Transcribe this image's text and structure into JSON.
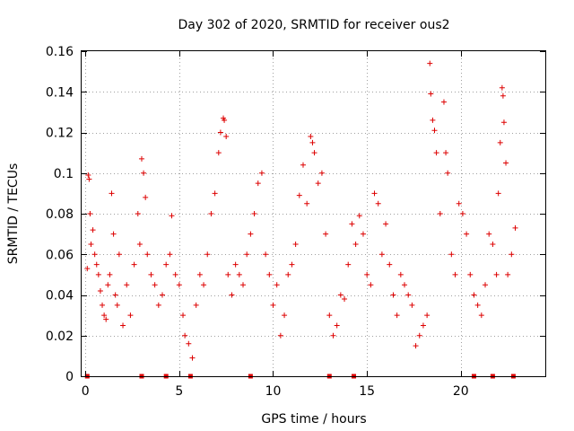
{
  "chart_data": {
    "type": "scatter",
    "title": "Day 302 of 2020, SRMTID for receiver ous2",
    "xlabel": "GPS time / hours",
    "ylabel": "SRMTID / TECUs",
    "xlim": [
      -0.2,
      24.5
    ],
    "ylim": [
      0,
      0.16
    ],
    "x_ticks": [
      0,
      5,
      10,
      15,
      20
    ],
    "x_tick_labels": [
      "0",
      "5",
      "10",
      "15",
      "20"
    ],
    "y_ticks": [
      0,
      0.02,
      0.04,
      0.06,
      0.08,
      0.1,
      0.12,
      0.14,
      0.16
    ],
    "y_tick_labels": [
      "0",
      "0.02",
      "0.04",
      "0.06",
      "0.08",
      "0.1",
      "0.12",
      "0.14",
      "0.16"
    ],
    "grid": true,
    "marker": "+",
    "color": "#dd0000",
    "zero_value_times": [
      0.1,
      3.0,
      4.3,
      5.6,
      8.8,
      13.0,
      14.3,
      20.7,
      21.7,
      22.8
    ],
    "series": [
      {
        "name": "SRMTID",
        "points": [
          [
            0.1,
            0.053
          ],
          [
            0.15,
            0.099
          ],
          [
            0.2,
            0.097
          ],
          [
            0.25,
            0.08
          ],
          [
            0.3,
            0.065
          ],
          [
            0.4,
            0.072
          ],
          [
            0.5,
            0.06
          ],
          [
            0.6,
            0.055
          ],
          [
            0.7,
            0.05
          ],
          [
            0.8,
            0.042
          ],
          [
            0.9,
            0.035
          ],
          [
            1.0,
            0.03
          ],
          [
            1.1,
            0.028
          ],
          [
            1.2,
            0.045
          ],
          [
            1.3,
            0.05
          ],
          [
            1.4,
            0.09
          ],
          [
            1.5,
            0.07
          ],
          [
            1.6,
            0.04
          ],
          [
            1.7,
            0.035
          ],
          [
            1.8,
            0.06
          ],
          [
            2.0,
            0.025
          ],
          [
            2.2,
            0.045
          ],
          [
            2.4,
            0.03
          ],
          [
            2.6,
            0.055
          ],
          [
            2.8,
            0.08
          ],
          [
            2.9,
            0.065
          ],
          [
            3.0,
            0.107
          ],
          [
            3.1,
            0.1
          ],
          [
            3.2,
            0.088
          ],
          [
            3.3,
            0.06
          ],
          [
            3.5,
            0.05
          ],
          [
            3.7,
            0.045
          ],
          [
            3.9,
            0.035
          ],
          [
            4.1,
            0.04
          ],
          [
            4.3,
            0.055
          ],
          [
            4.5,
            0.06
          ],
          [
            4.6,
            0.079
          ],
          [
            4.8,
            0.05
          ],
          [
            5.0,
            0.045
          ],
          [
            5.2,
            0.03
          ],
          [
            5.3,
            0.02
          ],
          [
            5.5,
            0.016
          ],
          [
            5.7,
            0.009
          ],
          [
            5.9,
            0.035
          ],
          [
            6.1,
            0.05
          ],
          [
            6.3,
            0.045
          ],
          [
            6.5,
            0.06
          ],
          [
            6.7,
            0.08
          ],
          [
            6.9,
            0.09
          ],
          [
            7.1,
            0.11
          ],
          [
            7.2,
            0.12
          ],
          [
            7.35,
            0.127
          ],
          [
            7.4,
            0.126
          ],
          [
            7.5,
            0.118
          ],
          [
            7.6,
            0.05
          ],
          [
            7.8,
            0.04
          ],
          [
            8.0,
            0.055
          ],
          [
            8.2,
            0.05
          ],
          [
            8.4,
            0.045
          ],
          [
            8.6,
            0.06
          ],
          [
            8.8,
            0.07
          ],
          [
            9.0,
            0.08
          ],
          [
            9.2,
            0.095
          ],
          [
            9.4,
            0.1
          ],
          [
            9.6,
            0.06
          ],
          [
            9.8,
            0.05
          ],
          [
            10.0,
            0.035
          ],
          [
            10.2,
            0.045
          ],
          [
            10.4,
            0.02
          ],
          [
            10.6,
            0.03
          ],
          [
            10.8,
            0.05
          ],
          [
            11.0,
            0.055
          ],
          [
            11.2,
            0.065
          ],
          [
            11.4,
            0.089
          ],
          [
            11.6,
            0.104
          ],
          [
            11.8,
            0.085
          ],
          [
            12.0,
            0.118
          ],
          [
            12.1,
            0.115
          ],
          [
            12.2,
            0.11
          ],
          [
            12.4,
            0.095
          ],
          [
            12.6,
            0.1
          ],
          [
            12.8,
            0.07
          ],
          [
            13.0,
            0.03
          ],
          [
            13.2,
            0.02
          ],
          [
            13.4,
            0.025
          ],
          [
            13.6,
            0.04
          ],
          [
            13.8,
            0.038
          ],
          [
            14.0,
            0.055
          ],
          [
            14.2,
            0.075
          ],
          [
            14.4,
            0.065
          ],
          [
            14.6,
            0.079
          ],
          [
            14.8,
            0.07
          ],
          [
            15.0,
            0.05
          ],
          [
            15.2,
            0.045
          ],
          [
            15.4,
            0.09
          ],
          [
            15.6,
            0.085
          ],
          [
            15.8,
            0.06
          ],
          [
            16.0,
            0.075
          ],
          [
            16.2,
            0.055
          ],
          [
            16.4,
            0.04
          ],
          [
            16.6,
            0.03
          ],
          [
            16.8,
            0.05
          ],
          [
            17.0,
            0.045
          ],
          [
            17.2,
            0.04
          ],
          [
            17.4,
            0.035
          ],
          [
            17.6,
            0.015
          ],
          [
            17.8,
            0.02
          ],
          [
            18.0,
            0.025
          ],
          [
            18.2,
            0.03
          ],
          [
            18.35,
            0.154
          ],
          [
            18.4,
            0.139
          ],
          [
            18.5,
            0.126
          ],
          [
            18.6,
            0.121
          ],
          [
            18.7,
            0.11
          ],
          [
            18.9,
            0.08
          ],
          [
            19.1,
            0.135
          ],
          [
            19.2,
            0.11
          ],
          [
            19.3,
            0.1
          ],
          [
            19.5,
            0.06
          ],
          [
            19.7,
            0.05
          ],
          [
            19.9,
            0.085
          ],
          [
            20.1,
            0.08
          ],
          [
            20.3,
            0.07
          ],
          [
            20.5,
            0.05
          ],
          [
            20.7,
            0.04
          ],
          [
            20.9,
            0.035
          ],
          [
            21.1,
            0.03
          ],
          [
            21.3,
            0.045
          ],
          [
            21.5,
            0.07
          ],
          [
            21.7,
            0.065
          ],
          [
            21.9,
            0.05
          ],
          [
            22.0,
            0.09
          ],
          [
            22.1,
            0.115
          ],
          [
            22.2,
            0.142
          ],
          [
            22.25,
            0.138
          ],
          [
            22.3,
            0.125
          ],
          [
            22.4,
            0.105
          ],
          [
            22.5,
            0.05
          ],
          [
            22.7,
            0.06
          ],
          [
            22.9,
            0.073
          ]
        ]
      }
    ]
  }
}
